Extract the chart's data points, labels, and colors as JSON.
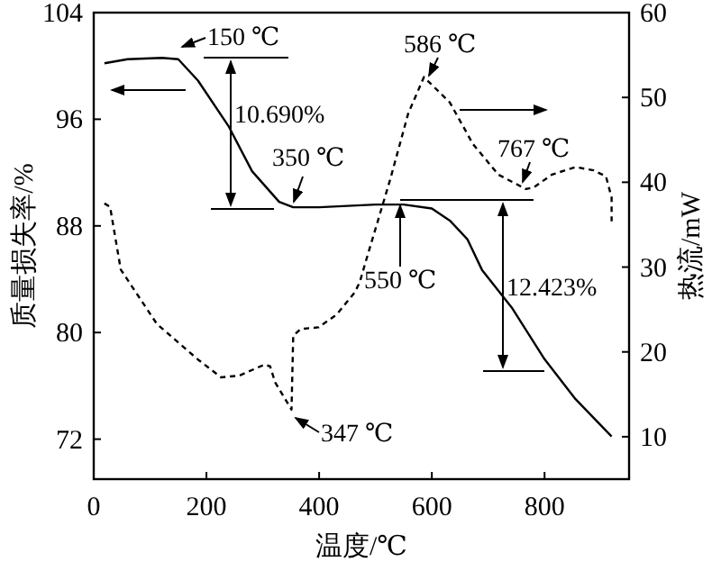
{
  "chart_data": {
    "type": "line",
    "xlabel": "温度/℃",
    "ylabel": "质量损失率/%",
    "y2label": "热流/mW",
    "xlim": [
      0,
      950
    ],
    "xticks": [
      0,
      200,
      400,
      600,
      800
    ],
    "ylim": [
      69,
      104
    ],
    "yticks": [
      72,
      80,
      88,
      96,
      104
    ],
    "y2lim": [
      5,
      60
    ],
    "y2ticks": [
      10,
      20,
      30,
      40,
      50,
      60
    ],
    "grid": false,
    "series": [
      {
        "color": "#000000",
        "line_style": "solid",
        "axis": "y",
        "x": [
          19,
          60,
          121,
          150,
          185,
          239,
          281,
          329,
          354,
          400,
          450,
          500,
          550,
          600,
          632,
          663,
          689,
          743,
          800,
          855,
          919
        ],
        "values": [
          100.2,
          100.5,
          100.6,
          100.5,
          98.9,
          95.5,
          92.1,
          89.8,
          89.4,
          89.4,
          89.5,
          89.6,
          89.6,
          89.3,
          88.4,
          87.0,
          84.7,
          81.8,
          78.0,
          75.0,
          72.2
        ]
      },
      {
        "color": "#000000",
        "line_style": "dashed",
        "axis": "y2",
        "x": [
          19,
          29,
          48,
          112,
          185,
          226,
          258,
          303,
          313,
          322,
          351,
          354,
          367,
          399,
          431,
          463,
          472,
          482,
          526,
          558,
          586,
          632,
          673,
          718,
          767,
          781,
          813,
          855,
          887,
          909,
          919,
          919
        ],
        "values": [
          37.5,
          37.1,
          29.7,
          23.3,
          19.1,
          17.0,
          17.2,
          18.5,
          18.3,
          16.4,
          13.2,
          21.9,
          22.7,
          22.9,
          24.4,
          27.0,
          28.2,
          30.5,
          40.3,
          48.1,
          52.4,
          49.4,
          44.5,
          40.9,
          39.2,
          39.4,
          40.9,
          41.8,
          41.4,
          40.7,
          38.2,
          35.4
        ]
      }
    ],
    "annotations": [
      "150 ℃",
      "10.690%",
      "350 ℃",
      "586 ℃",
      "767 ℃",
      "550 ℃",
      "12.423%",
      "347 ℃"
    ]
  }
}
